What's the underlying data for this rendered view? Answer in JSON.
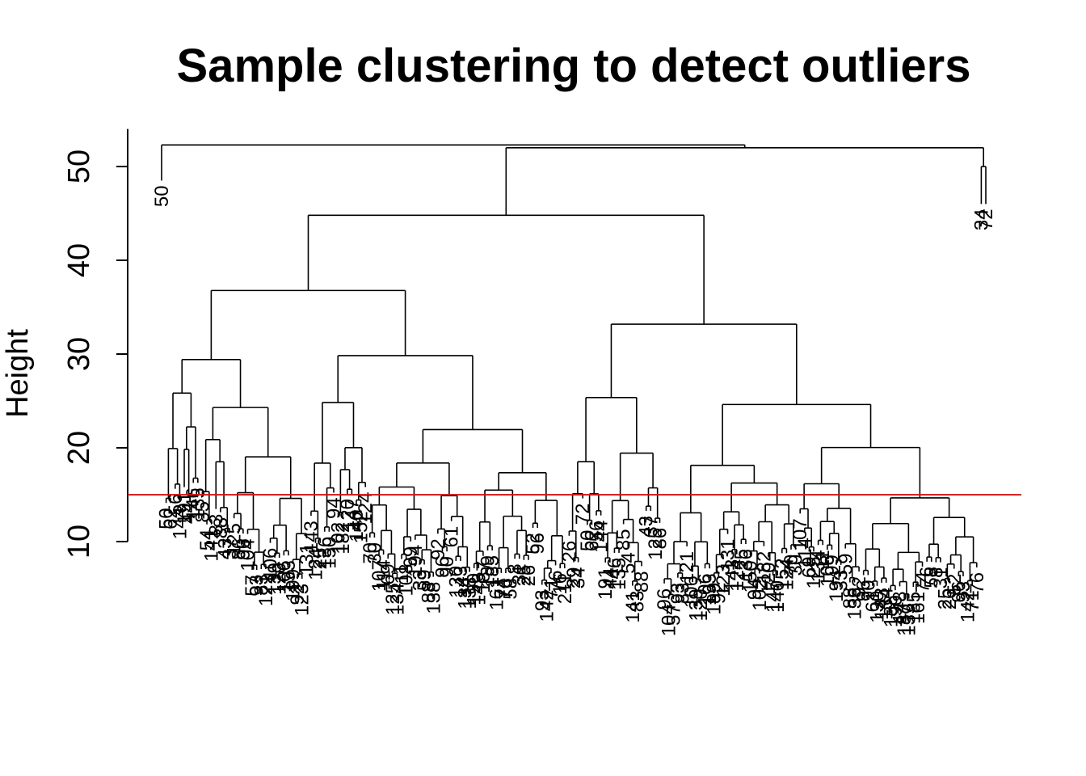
{
  "chart_data": {
    "type": "dendrogram",
    "title": "Sample clustering to detect outliers",
    "ylabel": "Height",
    "xlabel": "",
    "ylim": [
      10,
      54
    ],
    "y_ticks": [
      10,
      20,
      30,
      40,
      50
    ],
    "cut_height": 15,
    "cut_line_color": "#ff0000",
    "line_color": "#000000",
    "leaf_labels_visible": [
      "50",
      "62",
      "56",
      "144",
      "191",
      "44",
      "146",
      "135",
      "85",
      "54",
      "141",
      "83",
      "88",
      "43",
      "37",
      "125",
      "86",
      "96",
      "104",
      "57",
      "93",
      "83",
      "121",
      "106",
      "139",
      "120",
      "106",
      "193",
      "199",
      "92",
      "123",
      "131",
      "143",
      "124",
      "25",
      "136",
      "150",
      "94",
      "102",
      "182",
      "120",
      "147",
      "140",
      "152",
      "124",
      "70",
      "30",
      "107",
      "114",
      "69",
      "125",
      "134",
      "11",
      "108",
      "99",
      "194",
      "33",
      "59",
      "88",
      "138",
      "92",
      "96",
      "90",
      "61",
      "130",
      "143",
      "134",
      "138",
      "190",
      "148",
      "187",
      "139",
      "185",
      "161",
      "74",
      "76",
      "58",
      "8",
      "31",
      "25",
      "26",
      "52",
      "96",
      "93",
      "142",
      "71",
      "76",
      "16",
      "211",
      "26",
      "29",
      "34",
      "72"
    ]
  }
}
